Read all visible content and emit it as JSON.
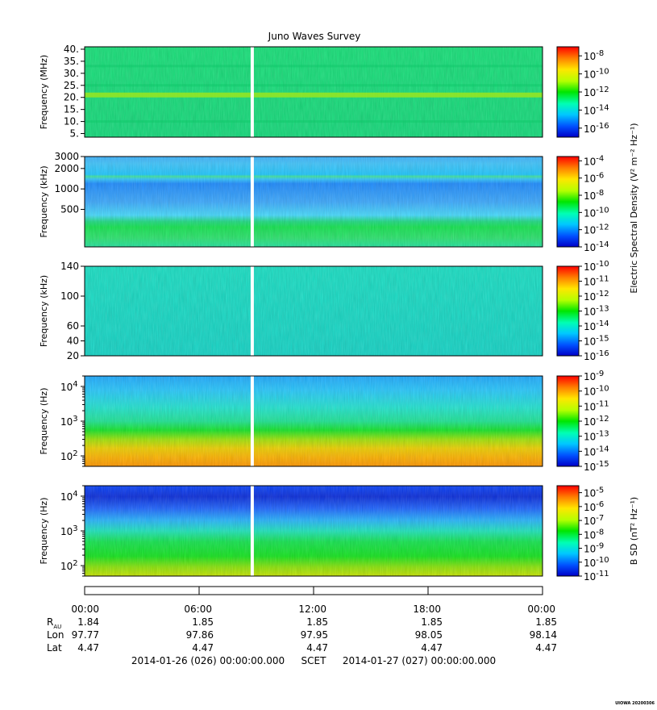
{
  "title": "Juno Waves Survey",
  "footer": {
    "start": "2014-01-26 (026) 00:00:00.000",
    "scet": "SCET",
    "end": "2014-01-27 (027) 00:00:00.000",
    "credit": "UIOWA 20200306"
  },
  "ephemeris": {
    "row_labels": [
      "R",
      "Lon",
      "Lat"
    ],
    "r_subscript": "AU",
    "time_ticks": [
      "00:00",
      "06:00",
      "12:00",
      "18:00",
      "00:00"
    ],
    "R": [
      "1.84",
      "1.85",
      "1.85",
      "1.85",
      "1.85"
    ],
    "Lon": [
      "97.77",
      "97.86",
      "97.95",
      "98.05",
      "98.14"
    ],
    "Lat": [
      "4.47",
      "4.47",
      "4.47",
      "4.47",
      "4.47"
    ]
  },
  "colorbar_labels": {
    "e_field": "Electric Spectral Density (V² m⁻² Hz⁻¹)",
    "b_field": "B SD (nT² Hz⁻¹)"
  },
  "chart_data": [
    {
      "type": "heatmap",
      "panel": "HFR high",
      "ylabel": "Frequency (MHz)",
      "yscale": "linear",
      "ylim": [
        3.5,
        41
      ],
      "ytick_labels": [
        "40.",
        "35.",
        "30.",
        "25.",
        "20.",
        "15.",
        "10.",
        "5."
      ],
      "yticks": [
        40,
        35,
        30,
        25,
        20,
        15,
        10,
        5
      ],
      "colorbar": {
        "scale": "log",
        "range_exp": [
          -17,
          -7
        ],
        "tick_exponents": [
          -8,
          -10,
          -12,
          -14,
          -16
        ]
      },
      "data_gap_hours": [
        8.7,
        8.85
      ],
      "features": [
        {
          "freq": 21,
          "note": "brighter horizontal band"
        }
      ]
    },
    {
      "type": "heatmap",
      "panel": "HFR low",
      "ylabel": "Frequency (kHz)",
      "yscale": "log",
      "ylim": [
        140,
        3000
      ],
      "ytick_labels": [
        "3000",
        "2000",
        "1000",
        "500"
      ],
      "yticks": [
        3000,
        2000,
        1000,
        500
      ],
      "colorbar": {
        "scale": "log",
        "range_exp": [
          -14,
          -3.5
        ],
        "tick_exponents": [
          -4,
          -6,
          -8,
          -10,
          -12,
          -14
        ]
      },
      "data_gap_hours": [
        8.7,
        8.85
      ]
    },
    {
      "type": "heatmap",
      "panel": "LFR high",
      "ylabel": "Frequency (kHz)",
      "yscale": "linear",
      "ylim": [
        20,
        140
      ],
      "ytick_labels": [
        "140",
        "100",
        "60",
        "40",
        "20"
      ],
      "yticks": [
        140,
        100,
        60,
        40,
        20
      ],
      "colorbar": {
        "scale": "log",
        "range_exp": [
          -16,
          -10
        ],
        "tick_exponents": [
          -10,
          -11,
          -12,
          -13,
          -14,
          -15,
          -16
        ]
      },
      "data_gap_hours": [
        8.7,
        8.85
      ]
    },
    {
      "type": "heatmap",
      "panel": "LFR low E",
      "ylabel": "Frequency (Hz)",
      "yscale": "log",
      "ylim": [
        50,
        20000
      ],
      "ytick_exponents": [
        4,
        3,
        2
      ],
      "colorbar": {
        "scale": "log",
        "range_exp": [
          -15,
          -9
        ],
        "tick_exponents": [
          -9,
          -10,
          -11,
          -12,
          -13,
          -14,
          -15
        ]
      },
      "data_gap_hours": [
        8.7,
        8.85
      ]
    },
    {
      "type": "heatmap",
      "panel": "LFR low B",
      "ylabel": "Frequency (Hz)",
      "yscale": "log",
      "ylim": [
        50,
        20000
      ],
      "ytick_exponents": [
        4,
        3,
        2
      ],
      "colorbar": {
        "scale": "log",
        "range_exp": [
          -11,
          -4.5
        ],
        "tick_exponents": [
          -5,
          -6,
          -7,
          -8,
          -9,
          -10,
          -11
        ]
      },
      "data_gap_hours": [
        8.7,
        8.85
      ]
    }
  ],
  "time_axis": {
    "range_hours": [
      0,
      24
    ],
    "ticks_hours": [
      0,
      6,
      12,
      18,
      24
    ]
  }
}
